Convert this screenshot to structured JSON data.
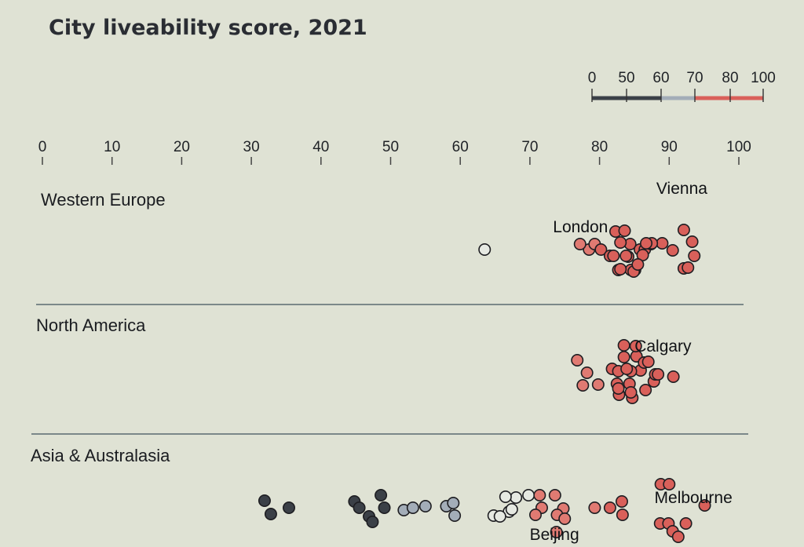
{
  "chart_data": {
    "type": "scatter",
    "title": "City liveability score, 2021",
    "xlim": [
      0,
      100
    ],
    "x_ticks": [
      "0",
      "10",
      "20",
      "30",
      "40",
      "50",
      "60",
      "70",
      "80",
      "90",
      "100"
    ],
    "legend": {
      "placement": "top-right",
      "labels": [
        "0",
        "50",
        "60",
        "70",
        "80",
        "100"
      ],
      "bands": [
        {
          "from": 0,
          "to": 50,
          "color": "#3b4047"
        },
        {
          "from": 50,
          "to": 60,
          "color": "#3b4047"
        },
        {
          "from": 60,
          "to": 70,
          "color": "#a3adb8"
        },
        {
          "from": 70,
          "to": 80,
          "color": "#d9605a"
        },
        {
          "from": 80,
          "to": 100,
          "color": "#d9605a"
        }
      ]
    },
    "colors": {
      "below_50": "#3b4047",
      "50_60": "#a3adb8",
      "60_70": "#e6e9e2",
      "70_80": "#e07a72",
      "80_100": "#d9605a"
    },
    "regions": [
      {
        "name": "Western Europe",
        "cities": [
          {
            "name": "",
            "score": 63.5
          },
          {
            "name": "London",
            "score": 78.5
          },
          {
            "name": "",
            "score": 77.2
          },
          {
            "name": "",
            "score": 79.3
          },
          {
            "name": "",
            "score": 80.2
          },
          {
            "name": "",
            "score": 81.5
          },
          {
            "name": "",
            "score": 82.3
          },
          {
            "name": "",
            "score": 83.6
          },
          {
            "name": "",
            "score": 84.4
          },
          {
            "name": "",
            "score": 85.8
          },
          {
            "name": "",
            "score": 86.5
          },
          {
            "name": "",
            "score": 87.4
          },
          {
            "name": "",
            "score": 89.0
          },
          {
            "name": "",
            "score": 82.0
          },
          {
            "name": "",
            "score": 83.0
          },
          {
            "name": "",
            "score": 84.1
          },
          {
            "name": "",
            "score": 85.1
          },
          {
            "name": "",
            "score": 86.2
          },
          {
            "name": "",
            "score": 87.5
          },
          {
            "name": "",
            "score": 82.7
          },
          {
            "name": "",
            "score": 84.5
          },
          {
            "name": "",
            "score": 86.7
          },
          {
            "name": "",
            "score": 83.0
          },
          {
            "name": "",
            "score": 84.9
          },
          {
            "name": "",
            "score": 83.8
          },
          {
            "name": "",
            "score": 85.5
          },
          {
            "name": "",
            "score": 90.5
          },
          {
            "name": "",
            "score": 92.1
          },
          {
            "name": "",
            "score": 93.3
          },
          {
            "name": "",
            "score": 93.6
          },
          {
            "name": "",
            "score": 92.7
          },
          {
            "name": "Vienna",
            "score": 92.1
          }
        ]
      },
      {
        "name": "North America",
        "cities": [
          {
            "name": "",
            "score": 76.8
          },
          {
            "name": "",
            "score": 78.2
          },
          {
            "name": "",
            "score": 77.6
          },
          {
            "name": "",
            "score": 79.8
          },
          {
            "name": "",
            "score": 81.8
          },
          {
            "name": "",
            "score": 83.5
          },
          {
            "name": "",
            "score": 85.3
          },
          {
            "name": "",
            "score": 82.5
          },
          {
            "name": "",
            "score": 84.3
          },
          {
            "name": "",
            "score": 85.9
          },
          {
            "name": "",
            "score": 87.8
          },
          {
            "name": "",
            "score": 82.7
          },
          {
            "name": "",
            "score": 84.5
          },
          {
            "name": "",
            "score": 86.4
          },
          {
            "name": "",
            "score": 88.0
          },
          {
            "name": "",
            "score": 90.6
          },
          {
            "name": "",
            "score": 82.8
          },
          {
            "name": "",
            "score": 84.7
          },
          {
            "name": "",
            "score": 86.6
          },
          {
            "name": "",
            "score": 88.4
          },
          {
            "name": "",
            "score": 83.5
          },
          {
            "name": "",
            "score": 85.2
          },
          {
            "name": "",
            "score": 87.0
          },
          {
            "name": "",
            "score": 82.7
          },
          {
            "name": "",
            "score": 84.5
          },
          {
            "name": "Calgary",
            "score": 83.9
          }
        ]
      },
      {
        "name": "Asia & Australasia",
        "cities": [
          {
            "name": "",
            "score": 31.9
          },
          {
            "name": "",
            "score": 32.8
          },
          {
            "name": "",
            "score": 35.4
          },
          {
            "name": "",
            "score": 44.8
          },
          {
            "name": "",
            "score": 45.5
          },
          {
            "name": "",
            "score": 46.9
          },
          {
            "name": "",
            "score": 47.4
          },
          {
            "name": "",
            "score": 48.6
          },
          {
            "name": "",
            "score": 49.1
          },
          {
            "name": "",
            "score": 51.9
          },
          {
            "name": "",
            "score": 53.2
          },
          {
            "name": "",
            "score": 55.0
          },
          {
            "name": "",
            "score": 58.0
          },
          {
            "name": "",
            "score": 59.2
          },
          {
            "name": "",
            "score": 59.0
          },
          {
            "name": "",
            "score": 64.8
          },
          {
            "name": "",
            "score": 67.0
          },
          {
            "name": "",
            "score": 68.0
          },
          {
            "name": "",
            "score": 65.7
          },
          {
            "name": "",
            "score": 66.5
          },
          {
            "name": "",
            "score": 67.4
          },
          {
            "name": "",
            "score": 69.8
          },
          {
            "name": "",
            "score": 71.4
          },
          {
            "name": "",
            "score": 73.6
          },
          {
            "name": "",
            "score": 74.8
          },
          {
            "name": "",
            "score": 71.7
          },
          {
            "name": "",
            "score": 70.8
          },
          {
            "name": "",
            "score": 73.9
          },
          {
            "name": "",
            "score": 75.0
          },
          {
            "name": "Beijing",
            "score": 73.8
          },
          {
            "name": "",
            "score": 79.3
          },
          {
            "name": "",
            "score": 81.5
          },
          {
            "name": "",
            "score": 83.2
          },
          {
            "name": "",
            "score": 83.3
          },
          {
            "name": "",
            "score": 88.8
          },
          {
            "name": "",
            "score": 90.0
          },
          {
            "name": "",
            "score": 88.7
          },
          {
            "name": "",
            "score": 89.9
          },
          {
            "name": "",
            "score": 90.5
          },
          {
            "name": "",
            "score": 92.4
          },
          {
            "name": "",
            "score": 91.3
          },
          {
            "name": "Melbourne",
            "score": 95.1
          }
        ]
      }
    ]
  }
}
